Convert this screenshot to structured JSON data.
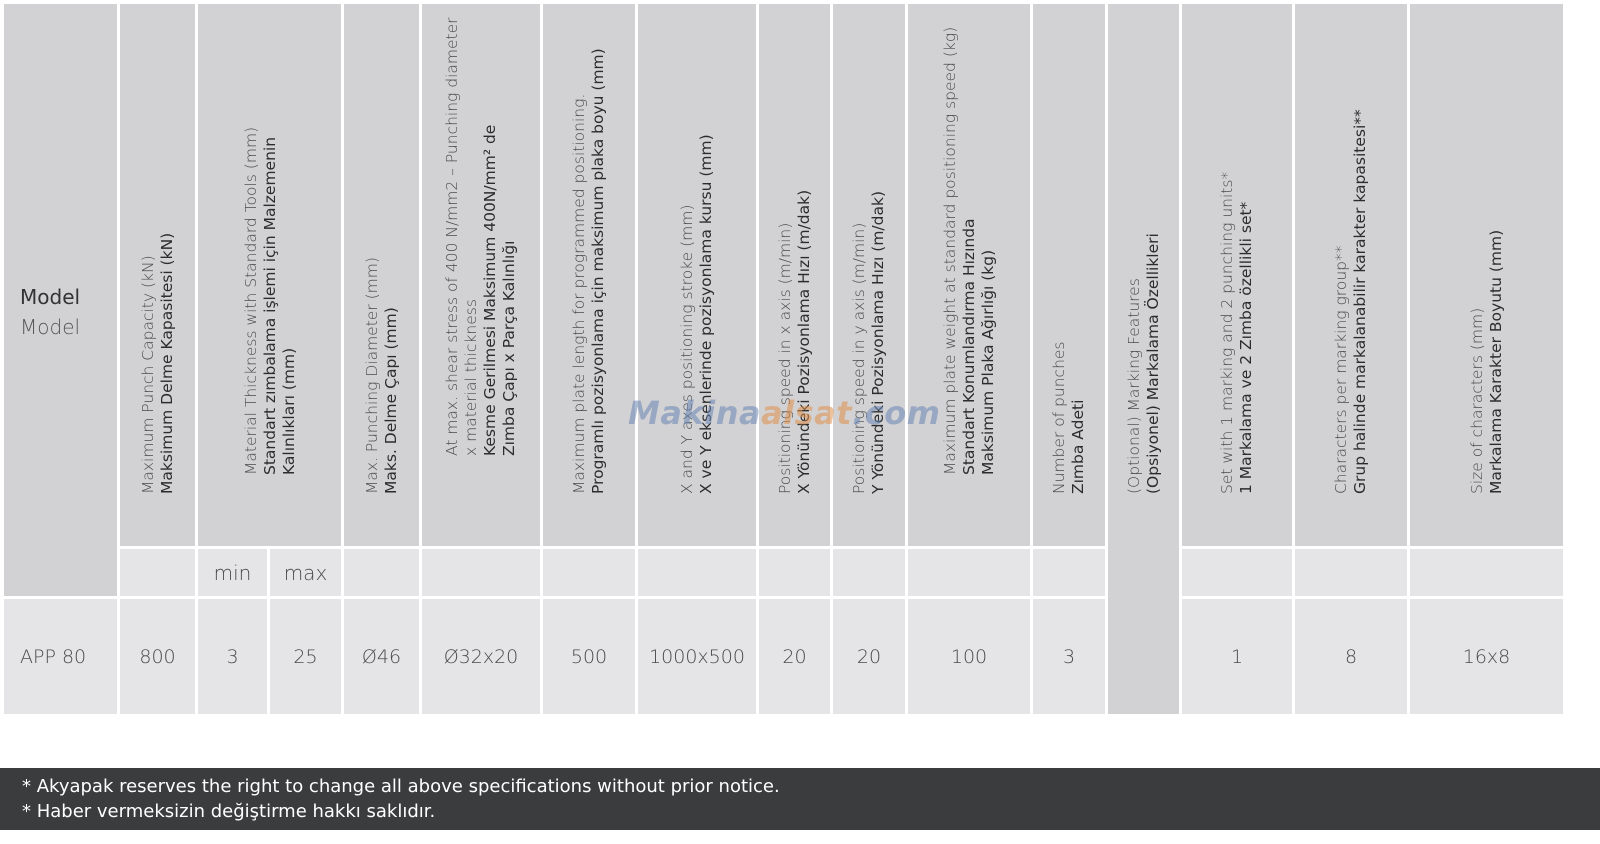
{
  "model_header": {
    "en": "Model",
    "tr": "Model"
  },
  "columns": [
    {
      "id": "punch_capacity",
      "en": "Maximum Punch Capacity (kN)",
      "tr": [
        "Maksimum Delme Kapasitesi (kN)"
      ]
    },
    {
      "id": "material_thickness",
      "en": "Material Thickness with Standard Tools (mm)",
      "tr": [
        "Standart zımbalama işlemi için Malzemenin",
        "Kalınlıkları (mm)"
      ]
    },
    {
      "id": "punch_diameter",
      "en": "Max. Punching Diameter (mm)",
      "tr": [
        "Maks. Delme Çapı (mm)"
      ]
    },
    {
      "id": "shear_stress",
      "en": "At max. shear stress of 400 N/mm2 – Punching diameter",
      "en2": "x material thickness",
      "tr": [
        "Kesme Gerilmesi Maksimum 400N/mm² de",
        "Zımba Çapı x Parça Kalınlığı"
      ]
    },
    {
      "id": "plate_length",
      "en": "Maximum plate length for programmed positioning.",
      "tr": [
        "Programlı pozisyonlama  için maksimum plaka boyu (mm)"
      ]
    },
    {
      "id": "xy_stroke",
      "en": "X and Y axes positioning stroke (mm)",
      "tr": [
        "X ve Y eksenlerinde pozisyonlama kursu (mm)"
      ]
    },
    {
      "id": "speed_x",
      "en": "Positioning speed in x axis (m/min)",
      "tr": [
        "X Yönündeki Pozisyonlama Hızı (m/dak)"
      ]
    },
    {
      "id": "speed_y",
      "en": "Positioning speed in y axis  (m/min)",
      "tr": [
        "Y Yönündeki Pozisyonlama Hızı (m/dak)"
      ]
    },
    {
      "id": "plate_weight",
      "en": "Maximum plate weight at standard positioning speed (kg)",
      "tr": [
        "Standart Konumlandırma Hızında",
        "Maksimum Plaka Ağırlığı (kg)"
      ]
    },
    {
      "id": "num_punches",
      "en": "Number of punches",
      "tr": [
        "Zımba Adeti"
      ]
    },
    {
      "id": "marking_features",
      "en": "(Optional) Marking Features",
      "tr": [
        "(Opsiyonel) Markalama Özellikleri"
      ]
    },
    {
      "id": "set_marking",
      "en": "Set with 1 marking and 2 punching units*",
      "tr": [
        "1 Markalama ve 2 Zımba özellikli set*"
      ]
    },
    {
      "id": "chars_per_group",
      "en": "Characters per marking group**",
      "tr": [
        "Grup halinde markalanabilir karakter kapasitesi**"
      ]
    },
    {
      "id": "char_size",
      "en": "Size of characters (mm)",
      "tr": [
        "Markalama Karakter Boyutu (mm)"
      ]
    }
  ],
  "subheader": {
    "min": "min",
    "max": "max"
  },
  "row": {
    "model": "APP 80",
    "punch_capacity": "800",
    "thickness_min": "3",
    "thickness_max": "25",
    "punch_diameter": "Ø46",
    "shear_stress": "Ø32x20",
    "plate_length": "500",
    "xy_stroke": "1000x500",
    "speed_x": "20",
    "speed_y": "20",
    "plate_weight": "100",
    "num_punches": "3",
    "set_marking": "1",
    "chars_per_group": "8",
    "char_size": "16x8"
  },
  "watermark": {
    "part1": "Makina",
    "part2": "alsat",
    "part3": ".com"
  },
  "footer": {
    "en": "* Akyapak reserves the right to change all above specifications without prior notice.",
    "tr": "* Haber vermeksizin değiştirme hakkı saklıdır."
  },
  "colors": {
    "header_bg": "#d2d2d4",
    "row_bg": "#e5e5e7",
    "footer_bg": "#3b3c3e"
  }
}
